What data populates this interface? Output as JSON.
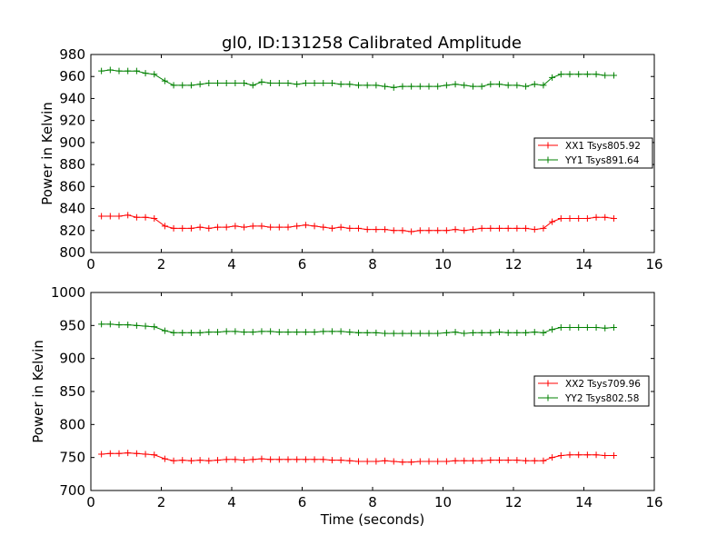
{
  "title": "gl0, ID:131258 Calibrated Amplitude",
  "chart_data": [
    {
      "type": "line",
      "title": "gl0, ID:131258 Calibrated Amplitude",
      "xlabel": "",
      "ylabel": "Power in Kelvin",
      "xlim": [
        0,
        16
      ],
      "ylim": [
        800,
        980
      ],
      "xticks": [
        0,
        2,
        4,
        6,
        8,
        10,
        12,
        14,
        16
      ],
      "yticks": [
        800,
        820,
        840,
        860,
        880,
        900,
        920,
        940,
        960,
        980
      ],
      "grid": false,
      "legend_position": "right",
      "x": [
        0.3,
        0.55,
        0.8,
        1.05,
        1.3,
        1.55,
        1.8,
        2.1,
        2.35,
        2.6,
        2.85,
        3.1,
        3.35,
        3.6,
        3.85,
        4.1,
        4.35,
        4.6,
        4.85,
        5.1,
        5.35,
        5.6,
        5.85,
        6.1,
        6.35,
        6.6,
        6.85,
        7.1,
        7.35,
        7.6,
        7.85,
        8.1,
        8.35,
        8.6,
        8.85,
        9.1,
        9.35,
        9.6,
        9.85,
        10.1,
        10.35,
        10.6,
        10.85,
        11.1,
        11.35,
        11.6,
        11.85,
        12.1,
        12.35,
        12.6,
        12.85,
        13.1,
        13.35,
        13.6,
        13.85,
        14.1,
        14.35,
        14.6,
        14.85
      ],
      "series": [
        {
          "name": "XX1 Tsys805.92",
          "color": "#ff0000",
          "values": [
            833,
            833,
            833,
            834,
            832,
            832,
            831,
            824,
            822,
            822,
            822,
            823,
            822,
            823,
            823,
            824,
            823,
            824,
            824,
            823,
            823,
            823,
            824,
            825,
            824,
            823,
            822,
            823,
            822,
            822,
            821,
            821,
            821,
            820,
            820,
            819,
            820,
            820,
            820,
            820,
            821,
            820,
            821,
            822,
            822,
            822,
            822,
            822,
            822,
            821,
            822,
            828,
            831,
            831,
            831,
            831,
            832,
            832,
            831
          ]
        },
        {
          "name": "YY1 Tsys891.64",
          "color": "#008000",
          "values": [
            965,
            966,
            965,
            965,
            965,
            963,
            962,
            956,
            952,
            952,
            952,
            953,
            954,
            954,
            954,
            954,
            954,
            952,
            955,
            954,
            954,
            954,
            953,
            954,
            954,
            954,
            954,
            953,
            953,
            952,
            952,
            952,
            951,
            950,
            951,
            951,
            951,
            951,
            951,
            952,
            953,
            952,
            951,
            951,
            953,
            953,
            952,
            952,
            951,
            953,
            952,
            959,
            962,
            962,
            962,
            962,
            962,
            961,
            961
          ]
        }
      ]
    },
    {
      "type": "line",
      "title": "",
      "xlabel": "Time (seconds)",
      "ylabel": "Power in Kelvin",
      "xlim": [
        0,
        16
      ],
      "ylim": [
        700,
        1000
      ],
      "xticks": [
        0,
        2,
        4,
        6,
        8,
        10,
        12,
        14,
        16
      ],
      "yticks": [
        700,
        750,
        800,
        850,
        900,
        950,
        1000
      ],
      "grid": false,
      "legend_position": "right",
      "x": [
        0.3,
        0.55,
        0.8,
        1.05,
        1.3,
        1.55,
        1.8,
        2.1,
        2.35,
        2.6,
        2.85,
        3.1,
        3.35,
        3.6,
        3.85,
        4.1,
        4.35,
        4.6,
        4.85,
        5.1,
        5.35,
        5.6,
        5.85,
        6.1,
        6.35,
        6.6,
        6.85,
        7.1,
        7.35,
        7.6,
        7.85,
        8.1,
        8.35,
        8.6,
        8.85,
        9.1,
        9.35,
        9.6,
        9.85,
        10.1,
        10.35,
        10.6,
        10.85,
        11.1,
        11.35,
        11.6,
        11.85,
        12.1,
        12.35,
        12.6,
        12.85,
        13.1,
        13.35,
        13.6,
        13.85,
        14.1,
        14.35,
        14.6,
        14.85
      ],
      "series": [
        {
          "name": "XX2 Tsys709.96",
          "color": "#ff0000",
          "values": [
            755,
            756,
            756,
            757,
            756,
            755,
            754,
            748,
            745,
            746,
            745,
            746,
            745,
            746,
            747,
            747,
            746,
            747,
            748,
            747,
            747,
            747,
            747,
            747,
            747,
            747,
            746,
            746,
            745,
            744,
            744,
            744,
            745,
            744,
            743,
            743,
            744,
            744,
            744,
            744,
            745,
            745,
            745,
            745,
            746,
            746,
            746,
            746,
            745,
            745,
            745,
            750,
            753,
            754,
            754,
            754,
            754,
            753,
            753
          ]
        },
        {
          "name": "YY2 Tsys802.58",
          "color": "#008000",
          "values": [
            952,
            952,
            951,
            951,
            950,
            949,
            948,
            942,
            939,
            939,
            939,
            939,
            940,
            940,
            941,
            941,
            940,
            940,
            941,
            941,
            940,
            940,
            940,
            940,
            940,
            941,
            941,
            941,
            940,
            939,
            939,
            939,
            938,
            938,
            938,
            938,
            938,
            938,
            938,
            939,
            940,
            938,
            939,
            939,
            939,
            940,
            939,
            939,
            939,
            940,
            939,
            944,
            947,
            947,
            947,
            947,
            947,
            946,
            947
          ]
        }
      ]
    }
  ]
}
